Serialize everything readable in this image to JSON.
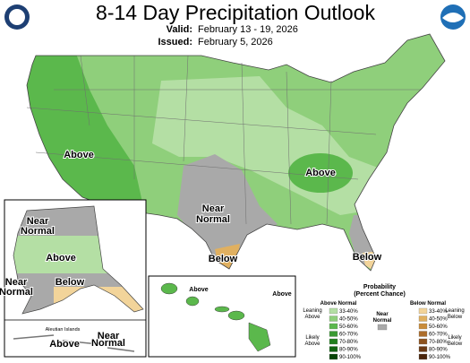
{
  "header": {
    "title": "8-14 Day Precipitation Outlook",
    "valid_label": "Valid:",
    "valid_dates": "February 13 - 19, 2026",
    "issued_label": "Issued:",
    "issued_date": "February 5, 2026"
  },
  "conus_labels": [
    "Above",
    "Above",
    "Near Normal",
    "Below",
    "Below"
  ],
  "alaska": {
    "labels": [
      "Near Normal",
      "Above",
      "Near Normal",
      "Below"
    ],
    "aleutian_title": "Aleutian Islands",
    "aleutian_labels": [
      "Above",
      "Near Normal"
    ]
  },
  "hawaii": {
    "labels": [
      "Above",
      "Above"
    ]
  },
  "legend": {
    "title": "Probability",
    "subtitle": "(Percent Chance)",
    "above": {
      "title": "Above Normal",
      "leaning": "Leaning Above",
      "likely": "Likely Above",
      "ranges": [
        "33-40%",
        "40-50%",
        "50-60%",
        "60-70%",
        "70-80%",
        "80-90%",
        "90-100%"
      ],
      "colors": [
        "#b4dfa4",
        "#8fcf7b",
        "#5bb84c",
        "#3a9a32",
        "#22801f",
        "#106310",
        "#064406"
      ]
    },
    "near": {
      "title": "Near Normal",
      "color": "#a9a9a9"
    },
    "below": {
      "title": "Below Normal",
      "leaning": "Leaning Below",
      "likely": "Likely Below",
      "ranges": [
        "33-40%",
        "40-50%",
        "50-60%",
        "60-70%",
        "70-80%",
        "80-90%",
        "90-100%"
      ],
      "colors": [
        "#f2d49a",
        "#e0b060",
        "#c98c3a",
        "#ad6d2a",
        "#8e531f",
        "#6c3a14",
        "#4a240a"
      ]
    }
  }
}
